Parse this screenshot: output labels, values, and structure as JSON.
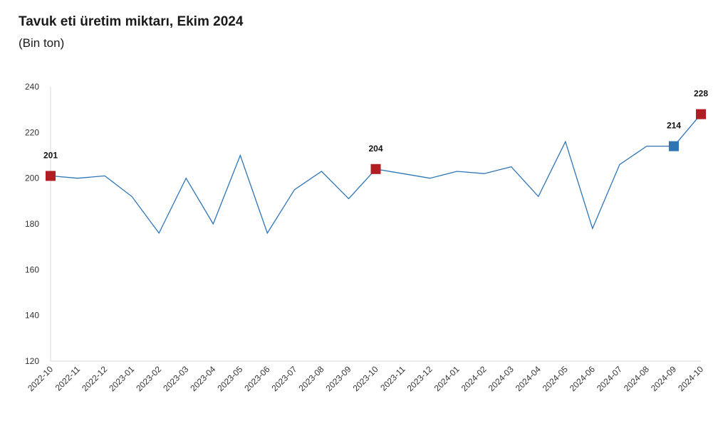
{
  "header": {
    "title": "Tavuk eti üretim miktarı, Ekim 2024",
    "subtitle": "(Bin ton)"
  },
  "chart_data": {
    "type": "line",
    "title": "Tavuk eti üretim miktarı, Ekim 2024",
    "subtitle": "(Bin ton)",
    "xlabel": "",
    "ylabel": "",
    "ylim": [
      120,
      240
    ],
    "yticks": [
      120,
      140,
      160,
      180,
      200,
      220,
      240
    ],
    "grid": false,
    "legend": "none",
    "categories": [
      "2022-10",
      "2022-11",
      "2022-12",
      "2023-01",
      "2023-02",
      "2023-03",
      "2023-04",
      "2023-05",
      "2023-06",
      "2023-07",
      "2023-08",
      "2023-09",
      "2023-10",
      "2023-11",
      "2023-12",
      "2024-01",
      "2024-02",
      "2024-03",
      "2024-04",
      "2024-05",
      "2024-06",
      "2024-07",
      "2024-08",
      "2024-09",
      "2024-10"
    ],
    "series": [
      {
        "values": [
          201,
          200,
          201,
          192,
          176,
          200,
          180,
          210,
          176,
          195,
          203,
          191,
          204,
          202,
          200,
          203,
          202,
          205,
          192,
          216,
          178,
          206,
          214,
          214,
          228
        ],
        "color": "#2e75b6"
      }
    ],
    "highlighted_points": [
      {
        "category": "2022-10",
        "value": 201,
        "label": "201",
        "color": "#b01e23"
      },
      {
        "category": "2023-10",
        "value": 204,
        "label": "204",
        "color": "#b01e23"
      },
      {
        "category": "2024-09",
        "value": 214,
        "label": "214",
        "color": "#2e75b6"
      },
      {
        "category": "2024-10",
        "value": 228,
        "label": "228",
        "color": "#b01e23"
      }
    ],
    "axis_color": "#d9d9d9"
  }
}
